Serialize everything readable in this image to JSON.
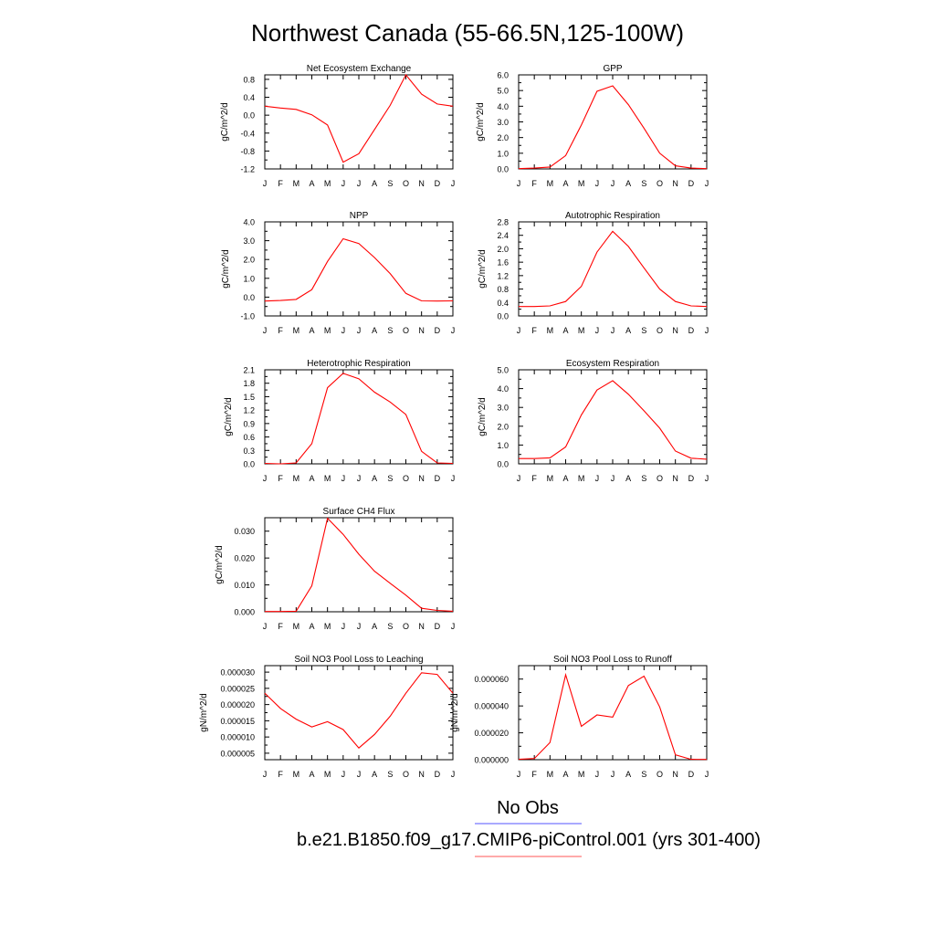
{
  "title": "Northwest Canada (55-66.5N,125-100W)",
  "months": [
    "J",
    "F",
    "M",
    "A",
    "M",
    "J",
    "J",
    "A",
    "S",
    "O",
    "N",
    "D",
    "J"
  ],
  "line_color": "#ff0000",
  "legend": {
    "obs_label": "No Obs",
    "obs_color": "#7777ff",
    "model_label": "b.e21.B1850.f09_g17.CMIP6-piControl.001 (yrs 301-400)",
    "model_color": "#ff7777"
  },
  "chart_data": [
    {
      "id": "net-ecosystem-exchange",
      "type": "line",
      "title": "Net Ecosystem Exchange",
      "ylabel": "gC/m^2/d",
      "ylim": [
        -1.2,
        0.9
      ],
      "yticks": [
        -1.2,
        -0.8,
        -0.4,
        0.0,
        0.4,
        0.8
      ],
      "ytick_labels": [
        "-1.2",
        "-0.8",
        "-0.4",
        "0.0",
        "0.4",
        "0.8"
      ],
      "x": [
        0,
        1,
        2,
        3,
        4,
        5,
        6,
        7,
        8,
        9,
        10,
        11,
        12
      ],
      "series": [
        {
          "values": [
            0.2,
            0.16,
            0.13,
            0.01,
            -0.22,
            -1.05,
            -0.86,
            -0.32,
            0.22,
            0.9,
            0.47,
            0.25,
            0.2
          ]
        }
      ]
    },
    {
      "id": "gpp",
      "type": "line",
      "title": "GPP",
      "ylabel": "gC/m^2/d",
      "ylim": [
        0.0,
        6.0
      ],
      "yticks": [
        0,
        1,
        2,
        3,
        4,
        5,
        6
      ],
      "ytick_labels": [
        "0.0",
        "1.0",
        "2.0",
        "3.0",
        "4.0",
        "5.0",
        "6.0"
      ],
      "x": [
        0,
        1,
        2,
        3,
        4,
        5,
        6,
        7,
        8,
        9,
        10,
        11,
        12
      ],
      "series": [
        {
          "values": [
            0.02,
            0.05,
            0.12,
            0.85,
            2.8,
            4.95,
            5.3,
            4.1,
            2.6,
            1.0,
            0.2,
            0.05,
            0.02
          ]
        }
      ]
    },
    {
      "id": "npp",
      "type": "line",
      "title": "NPP",
      "ylabel": "gC/m^2/d",
      "ylim": [
        -1.0,
        4.0
      ],
      "yticks": [
        -1,
        0,
        1,
        2,
        3,
        4
      ],
      "ytick_labels": [
        "-1.0",
        "0.0",
        "1.0",
        "2.0",
        "3.0",
        "4.0"
      ],
      "x": [
        0,
        1,
        2,
        3,
        4,
        5,
        6,
        7,
        8,
        9,
        10,
        11,
        12
      ],
      "series": [
        {
          "values": [
            -0.21,
            -0.18,
            -0.12,
            0.4,
            1.9,
            3.1,
            2.85,
            2.1,
            1.25,
            0.2,
            -0.2,
            -0.21,
            -0.2
          ]
        }
      ]
    },
    {
      "id": "autotrophic-respiration",
      "type": "line",
      "title": "Autotrophic Respiration",
      "ylabel": "gC/m^2/d",
      "ylim": [
        0.0,
        2.8
      ],
      "yticks": [
        0,
        0.4,
        0.8,
        1.2,
        1.6,
        2.0,
        2.4,
        2.8
      ],
      "ytick_labels": [
        "0.0",
        "0.4",
        "0.8",
        "1.2",
        "1.6",
        "2.0",
        "2.4",
        "2.8"
      ],
      "x": [
        0,
        1,
        2,
        3,
        4,
        5,
        6,
        7,
        8,
        9,
        10,
        11,
        12
      ],
      "series": [
        {
          "values": [
            0.28,
            0.28,
            0.3,
            0.43,
            0.88,
            1.9,
            2.52,
            2.07,
            1.43,
            0.8,
            0.43,
            0.3,
            0.28
          ]
        }
      ]
    },
    {
      "id": "heterotrophic-respiration",
      "type": "line",
      "title": "Heterotrophic Respiration",
      "ylabel": "gC/m^2/d",
      "ylim": [
        0.0,
        2.1
      ],
      "yticks": [
        0,
        0.3,
        0.6,
        0.9,
        1.2,
        1.5,
        1.8,
        2.1
      ],
      "ytick_labels": [
        "0.0",
        "0.3",
        "0.6",
        "0.9",
        "1.2",
        "1.5",
        "1.8",
        "2.1"
      ],
      "x": [
        0,
        1,
        2,
        3,
        4,
        5,
        6,
        7,
        8,
        9,
        10,
        11,
        12
      ],
      "series": [
        {
          "values": [
            0.01,
            0.0,
            0.02,
            0.45,
            1.7,
            2.02,
            1.9,
            1.6,
            1.38,
            1.1,
            0.28,
            0.02,
            0.01
          ]
        }
      ]
    },
    {
      "id": "ecosystem-respiration",
      "type": "line",
      "title": "Ecosystem Respiration",
      "ylabel": "gC/m^2/d",
      "ylim": [
        0.0,
        5.0
      ],
      "yticks": [
        0,
        1,
        2,
        3,
        4,
        5
      ],
      "ytick_labels": [
        "0.0",
        "1.0",
        "2.0",
        "3.0",
        "4.0",
        "5.0"
      ],
      "x": [
        0,
        1,
        2,
        3,
        4,
        5,
        6,
        7,
        8,
        9,
        10,
        11,
        12
      ],
      "series": [
        {
          "values": [
            0.28,
            0.28,
            0.32,
            0.9,
            2.6,
            3.92,
            4.42,
            3.7,
            2.82,
            1.9,
            0.68,
            0.3,
            0.25
          ]
        }
      ]
    },
    {
      "id": "surface-ch4-flux",
      "type": "line",
      "title": "Surface CH4 Flux",
      "ylabel": "gC/m^2/d",
      "ylim": [
        0.0,
        0.035
      ],
      "yticks": [
        0.0,
        0.01,
        0.02,
        0.03
      ],
      "ytick_labels": [
        "0.000",
        "0.010",
        "0.020",
        "0.030"
      ],
      "x": [
        0,
        1,
        2,
        3,
        4,
        5,
        6,
        7,
        8,
        9,
        10,
        11,
        12
      ],
      "series": [
        {
          "values": [
            0.0001,
            0.0001,
            0.0002,
            0.0097,
            0.0348,
            0.0288,
            0.0214,
            0.0151,
            0.0106,
            0.0062,
            0.0013,
            0.0005,
            0.0002
          ]
        }
      ]
    },
    {
      "id": "soil-no3-leaching",
      "type": "line",
      "title": "Soil NO3 Pool Loss to Leaching",
      "ylabel": "gN/m^2/d",
      "ylim": [
        3e-06,
        3.2e-05
      ],
      "yticks": [
        5e-06,
        1e-05,
        1.5e-05,
        2e-05,
        2.5e-05,
        3e-05
      ],
      "ytick_labels": [
        "0.000005",
        "0.000010",
        "0.000015",
        "0.000020",
        "0.000025",
        "0.000030"
      ],
      "x": [
        0,
        1,
        2,
        3,
        4,
        5,
        6,
        7,
        8,
        9,
        10,
        11,
        12
      ],
      "series": [
        {
          "values": [
            2.35e-05,
            1.88e-05,
            1.55e-05,
            1.31e-05,
            1.47e-05,
            1.23e-05,
            6.6e-06,
            1.08e-05,
            1.64e-05,
            2.35e-05,
            2.98e-05,
            2.93e-05,
            2.35e-05
          ]
        }
      ]
    },
    {
      "id": "soil-no3-runoff",
      "type": "line",
      "title": "Soil NO3 Pool Loss to Runoff",
      "ylabel": "gN/m^2/d",
      "ylim": [
        0.0,
        7e-05
      ],
      "yticks": [
        0.0,
        2e-05,
        4e-05,
        6e-05
      ],
      "ytick_labels": [
        "0.000000",
        "0.000020",
        "0.000040",
        "0.000060"
      ],
      "x": [
        0,
        1,
        2,
        3,
        4,
        5,
        6,
        7,
        8,
        9,
        10,
        11,
        12
      ],
      "series": [
        {
          "values": [
            3e-07,
            9e-07,
            1.28e-05,
            6.32e-05,
            2.48e-05,
            3.33e-05,
            3.17e-05,
            5.52e-05,
            6.22e-05,
            3.92e-05,
            3.6e-06,
            3e-07,
            2e-07
          ]
        }
      ]
    }
  ]
}
